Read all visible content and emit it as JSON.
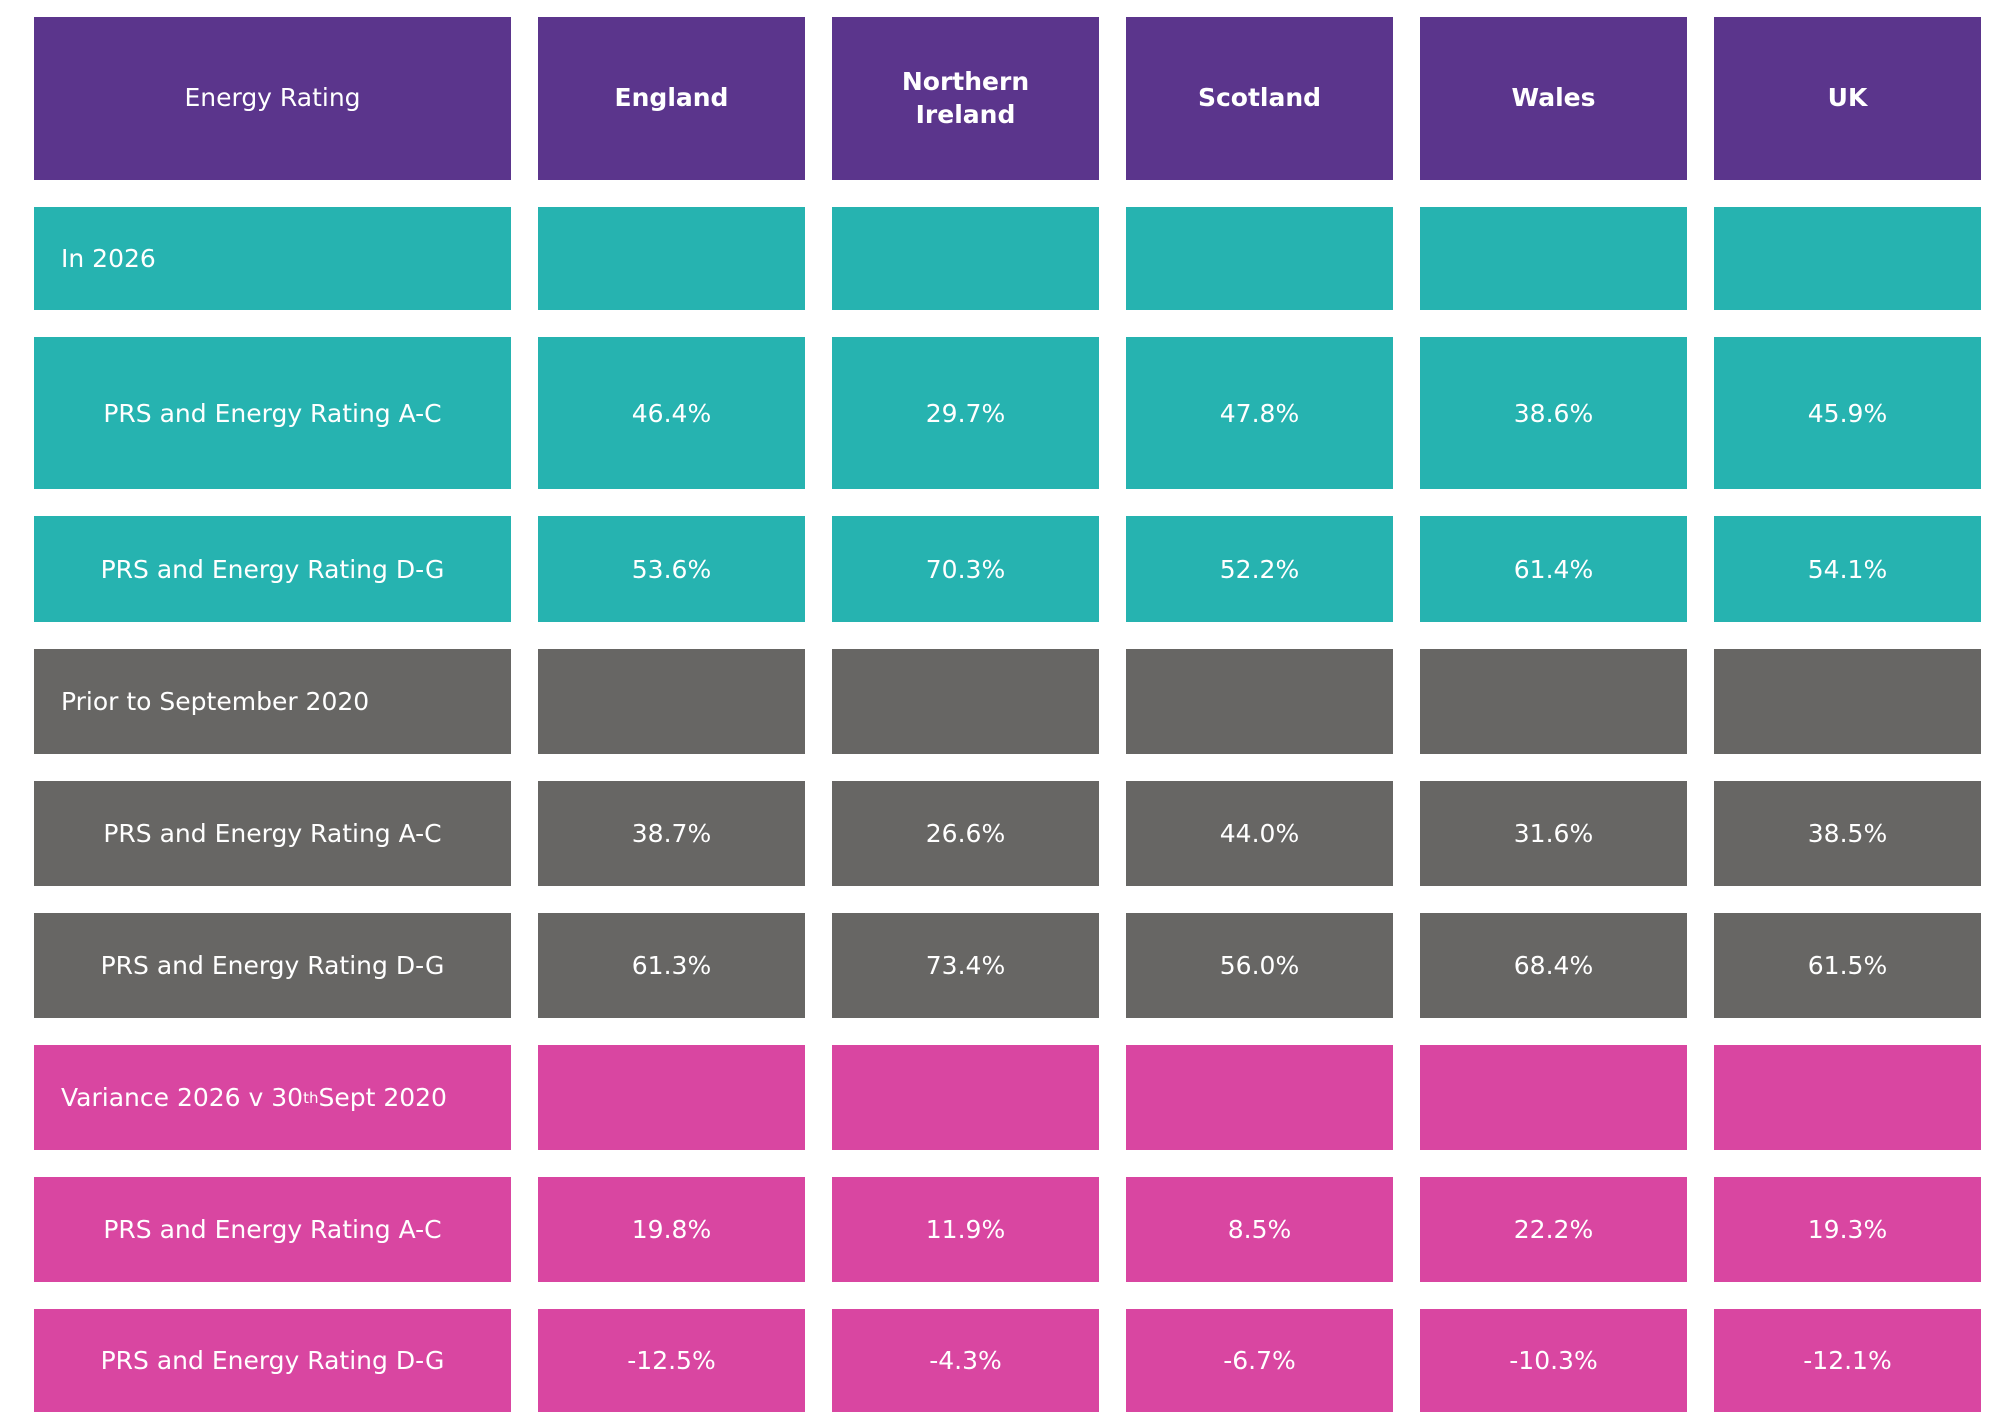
{
  "table": {
    "header": [
      "Energy Rating",
      "England",
      "Northern Ireland",
      "Scotland",
      "Wales",
      "UK"
    ],
    "sections": [
      {
        "title": "In 2026",
        "color": "#26b3b0",
        "rows": [
          {
            "label": "PRS and Energy Rating A-C",
            "values": [
              "46.4%",
              "29.7%",
              "47.8%",
              "38.6%",
              "45.9%"
            ]
          },
          {
            "label": "PRS and Energy Rating D-G",
            "values": [
              "53.6%",
              "70.3%",
              "52.2%",
              "61.4%",
              "54.1%"
            ]
          }
        ]
      },
      {
        "title": "Prior to September 2020",
        "color": "#676664",
        "rows": [
          {
            "label": "PRS and Energy Rating A-C",
            "values": [
              "38.7%",
              "26.6%",
              "44.0%",
              "31.6%",
              "38.5%"
            ]
          },
          {
            "label": "PRS and Energy Rating D-G",
            "values": [
              "61.3%",
              "73.4%",
              "56.0%",
              "68.4%",
              "61.5%"
            ]
          }
        ]
      },
      {
        "title": [
          {
            "text": "Variance 2026 v 30"
          },
          {
            "text": "th",
            "sup": true
          },
          {
            "text": " Sept 2020"
          }
        ],
        "color": "#d946a1",
        "rows": [
          {
            "label": "PRS and Energy Rating A-C",
            "values": [
              "19.8%",
              "11.9%",
              "8.5%",
              "22.2%",
              "19.3%"
            ]
          },
          {
            "label": "PRS and Energy Rating D-G",
            "values": [
              "-12.5%",
              "-4.3%",
              "-6.7%",
              "-10.3%",
              "-12.1%"
            ]
          }
        ]
      }
    ]
  }
}
